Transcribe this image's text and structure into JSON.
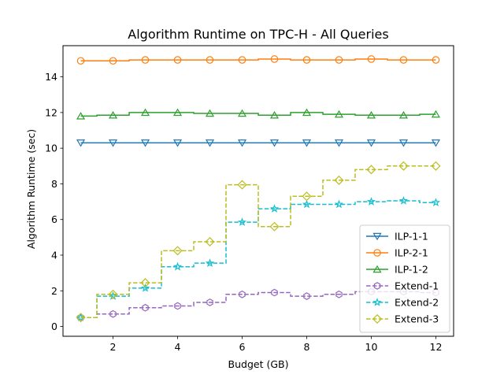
{
  "chart_data": {
    "type": "line",
    "step": "mid",
    "title": "Algorithm Runtime on TPC-H - All Queries",
    "xlabel": "Budget (GB)",
    "ylabel": "Algorithm Runtime (sec)",
    "xlim": [
      0.45,
      12.55
    ],
    "ylim": [
      -0.55,
      15.75
    ],
    "xticks": [
      2,
      4,
      6,
      8,
      10,
      12
    ],
    "yticks": [
      0,
      2,
      4,
      6,
      8,
      10,
      12,
      14
    ],
    "grid": false,
    "legend_position": "lower-right",
    "x": [
      1,
      2,
      3,
      4,
      5,
      6,
      7,
      8,
      9,
      10,
      11,
      12
    ],
    "series": [
      {
        "name": "ILP-1-1",
        "color": "#1f77b4",
        "linestyle": "solid",
        "marker": "triangle-down",
        "values": [
          10.3,
          10.3,
          10.3,
          10.3,
          10.3,
          10.3,
          10.3,
          10.3,
          10.3,
          10.3,
          10.3,
          10.3
        ]
      },
      {
        "name": "ILP-2-1",
        "color": "#ff7f0e",
        "linestyle": "solid",
        "marker": "circle",
        "values": [
          14.9,
          14.9,
          14.95,
          14.95,
          14.95,
          14.95,
          15.0,
          14.95,
          14.95,
          15.0,
          14.95,
          14.95
        ]
      },
      {
        "name": "ILP-1-2",
        "color": "#2ca02c",
        "linestyle": "solid",
        "marker": "triangle-up",
        "values": [
          11.8,
          11.85,
          12.0,
          12.0,
          11.95,
          11.95,
          11.85,
          12.0,
          11.9,
          11.85,
          11.85,
          11.9
        ]
      },
      {
        "name": "Extend-1",
        "color": "#9467bd",
        "linestyle": "dashed",
        "marker": "hexagon",
        "values": [
          0.5,
          0.7,
          1.05,
          1.15,
          1.35,
          1.8,
          1.9,
          1.7,
          1.8,
          1.95,
          1.95,
          1.9
        ]
      },
      {
        "name": "Extend-2",
        "color": "#17becf",
        "linestyle": "dashed",
        "marker": "star",
        "values": [
          0.5,
          1.7,
          2.15,
          3.35,
          3.55,
          5.85,
          6.6,
          6.85,
          6.85,
          7.0,
          7.05,
          6.95
        ]
      },
      {
        "name": "Extend-3",
        "color": "#bcbd22",
        "linestyle": "dashed",
        "marker": "diamond",
        "values": [
          0.5,
          1.8,
          2.45,
          4.25,
          4.75,
          7.95,
          5.6,
          7.3,
          8.2,
          8.8,
          9.0,
          9.0
        ]
      }
    ]
  }
}
